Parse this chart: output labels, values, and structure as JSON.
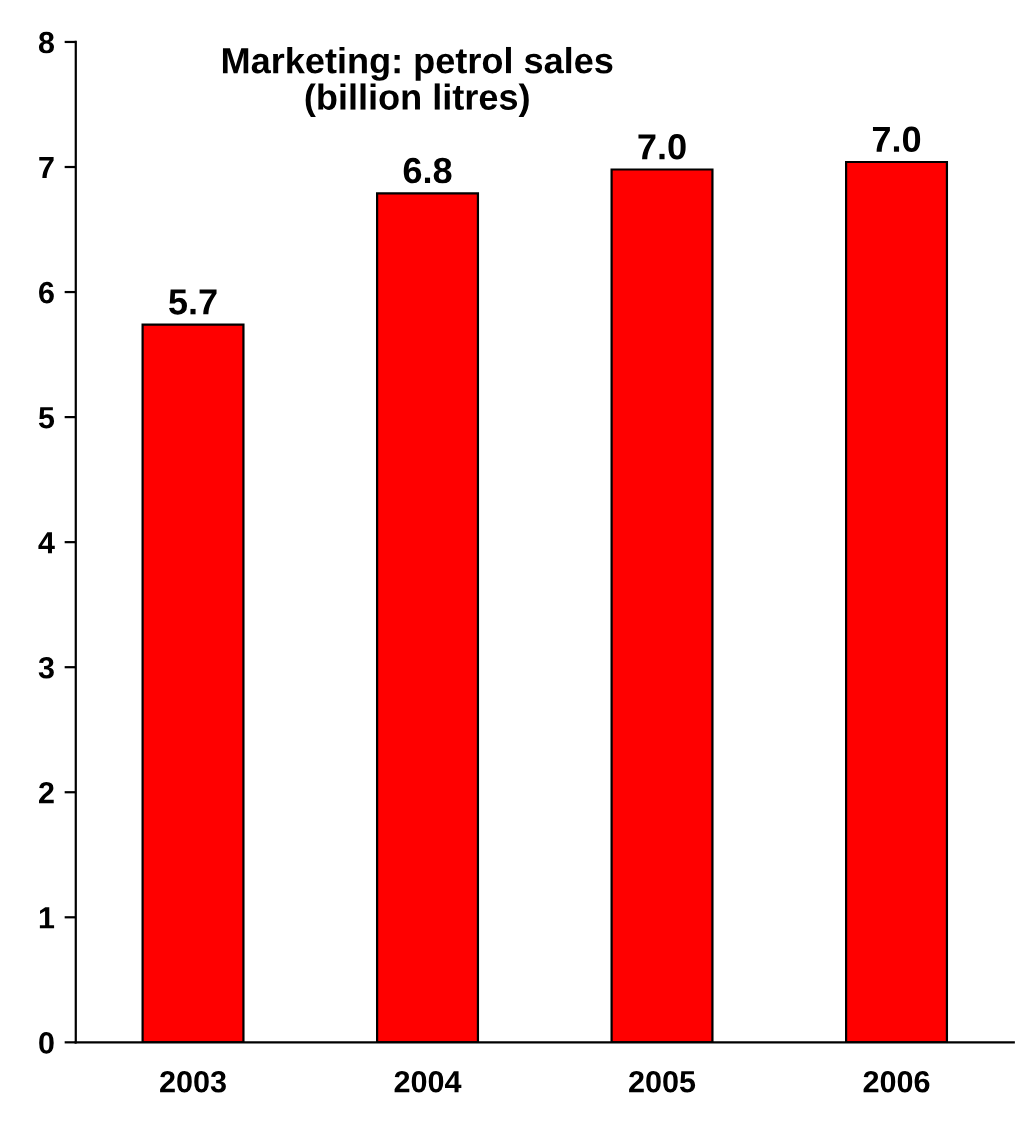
{
  "chart_data": {
    "type": "bar",
    "title": "Marketing: petrol sales\n(billion litres)",
    "categories": [
      "2003",
      "2004",
      "2005",
      "2006"
    ],
    "values": [
      5.74,
      6.79,
      6.98,
      7.04
    ],
    "value_labels": [
      "5.7",
      "6.8",
      "7.0",
      "7.0"
    ],
    "color": "#ff0000",
    "ylim": [
      0,
      8
    ],
    "yticks": [
      0,
      1,
      2,
      3,
      4,
      5,
      6,
      7,
      8
    ],
    "grid": false,
    "legend": false
  }
}
